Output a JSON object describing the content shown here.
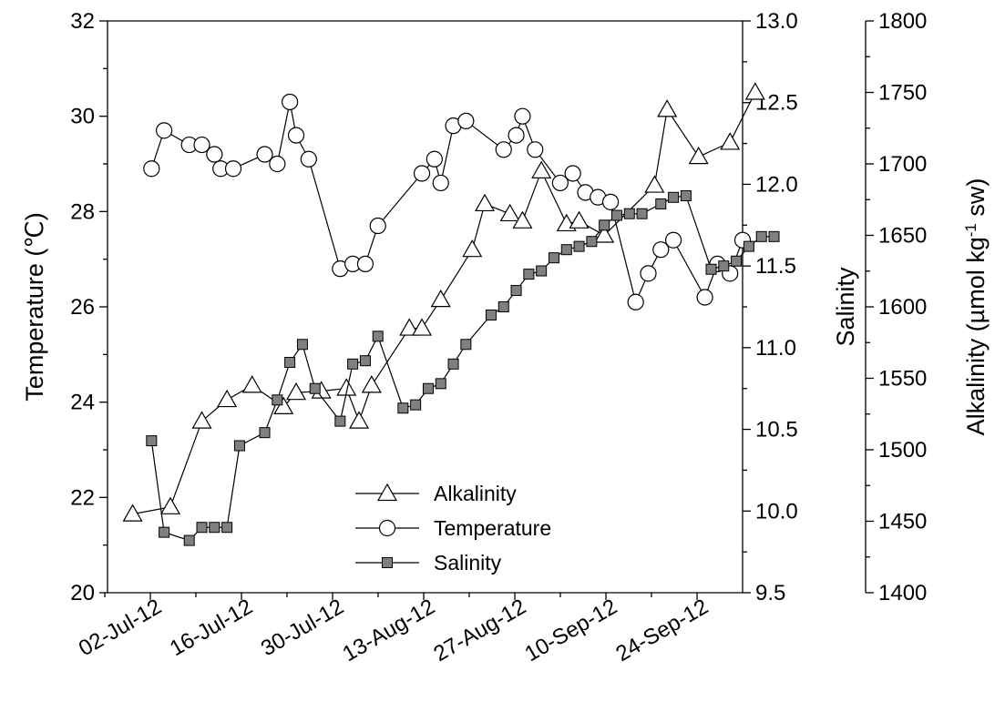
{
  "chart_data": {
    "type": "line",
    "x_tick_labels": [
      "02-Jul-12",
      "16-Jul-12",
      "30-Jul-12",
      "13-Aug-12",
      "27-Aug-12",
      "10-Sep-12",
      "24-Sep-12"
    ],
    "xlim": [
      "2012-06-27",
      "2012-10-06"
    ],
    "axes": {
      "temperature": {
        "label": "Temperature (℃)",
        "ylim": [
          20,
          32
        ],
        "ticks": [
          "20",
          "22",
          "24",
          "26",
          "28",
          "30",
          "32"
        ]
      },
      "salinity": {
        "label": "Salinity",
        "ylim": [
          9.5,
          13.0
        ],
        "ticks": [
          "9.5",
          "10.0",
          "10.5",
          "11.0",
          "11.5",
          "12.0",
          "12.5",
          "13.0"
        ]
      },
      "alkalinity": {
        "label_main": "Alkalinity (µmol kg",
        "label_sup": "-1",
        "label_tail": " sw)",
        "ylim": [
          1400,
          1800
        ],
        "ticks": [
          "1400",
          "1450",
          "1500",
          "1550",
          "1600",
          "1650",
          "1700",
          "1750",
          "1800"
        ]
      }
    },
    "legend": {
      "position": "bottom-center",
      "entries": [
        "Alkalinity",
        "Temperature",
        "Salinity"
      ]
    },
    "series": [
      {
        "name": "Alkalinity",
        "axis": "alkalinity",
        "marker": "triangle",
        "points": [
          [
            "2012-07-01",
            1455
          ],
          [
            "2012-07-07",
            1460
          ],
          [
            "2012-07-12",
            1520
          ],
          [
            "2012-07-16",
            1535
          ],
          [
            "2012-07-20",
            1545
          ],
          [
            "2012-07-25",
            1530
          ],
          [
            "2012-07-27",
            1540
          ],
          [
            "2012-07-31",
            1541
          ],
          [
            "2012-08-04",
            1543
          ],
          [
            "2012-08-06",
            1520
          ],
          [
            "2012-08-08",
            1545
          ],
          [
            "2012-08-14",
            1585
          ],
          [
            "2012-08-16",
            1585
          ],
          [
            "2012-08-19",
            1605
          ],
          [
            "2012-08-24",
            1640
          ],
          [
            "2012-08-26",
            1672
          ],
          [
            "2012-08-30",
            1665
          ],
          [
            "2012-09-01",
            1660
          ],
          [
            "2012-09-04",
            1695
          ],
          [
            "2012-09-08",
            1658
          ],
          [
            "2012-09-10",
            1660
          ],
          [
            "2012-09-14",
            1650
          ],
          [
            "2012-09-22",
            1685
          ],
          [
            "2012-09-24",
            1738
          ],
          [
            "2012-09-29",
            1705
          ],
          [
            "2012-10-04",
            1715
          ],
          [
            "2012-10-08",
            1750
          ]
        ]
      },
      {
        "name": "Temperature",
        "axis": "temperature",
        "marker": "circle",
        "points": [
          [
            "2012-07-04",
            28.9
          ],
          [
            "2012-07-06",
            29.7
          ],
          [
            "2012-07-10",
            29.4
          ],
          [
            "2012-07-12",
            29.4
          ],
          [
            "2012-07-14",
            29.2
          ],
          [
            "2012-07-15",
            28.9
          ],
          [
            "2012-07-17",
            28.9
          ],
          [
            "2012-07-22",
            29.2
          ],
          [
            "2012-07-24",
            29.0
          ],
          [
            "2012-07-26",
            30.3
          ],
          [
            "2012-07-27",
            29.6
          ],
          [
            "2012-07-29",
            29.1
          ],
          [
            "2012-08-03",
            26.8
          ],
          [
            "2012-08-05",
            26.9
          ],
          [
            "2012-08-07",
            26.9
          ],
          [
            "2012-08-09",
            27.7
          ],
          [
            "2012-08-16",
            28.8
          ],
          [
            "2012-08-18",
            29.1
          ],
          [
            "2012-08-19",
            28.6
          ],
          [
            "2012-08-21",
            29.8
          ],
          [
            "2012-08-23",
            29.9
          ],
          [
            "2012-08-29",
            29.3
          ],
          [
            "2012-08-31",
            29.6
          ],
          [
            "2012-09-01",
            30.0
          ],
          [
            "2012-09-03",
            29.3
          ],
          [
            "2012-09-07",
            28.6
          ],
          [
            "2012-09-09",
            28.8
          ],
          [
            "2012-09-11",
            28.4
          ],
          [
            "2012-09-13",
            28.3
          ],
          [
            "2012-09-15",
            28.2
          ],
          [
            "2012-09-19",
            26.1
          ],
          [
            "2012-09-21",
            26.7
          ],
          [
            "2012-09-23",
            27.2
          ],
          [
            "2012-09-25",
            27.4
          ],
          [
            "2012-09-30",
            26.2
          ],
          [
            "2012-10-02",
            26.9
          ],
          [
            "2012-10-04",
            26.7
          ],
          [
            "2012-10-06",
            27.4
          ]
        ]
      },
      {
        "name": "Salinity",
        "axis": "salinity",
        "marker": "square",
        "points": [
          [
            "2012-07-04",
            10.43
          ],
          [
            "2012-07-06",
            9.87
          ],
          [
            "2012-07-10",
            9.82
          ],
          [
            "2012-07-12",
            9.9
          ],
          [
            "2012-07-14",
            9.9
          ],
          [
            "2012-07-16",
            9.9
          ],
          [
            "2012-07-18",
            10.4
          ],
          [
            "2012-07-22",
            10.48
          ],
          [
            "2012-07-24",
            10.68
          ],
          [
            "2012-07-26",
            10.91
          ],
          [
            "2012-07-28",
            11.02
          ],
          [
            "2012-07-30",
            10.75
          ],
          [
            "2012-08-03",
            10.55
          ],
          [
            "2012-08-05",
            10.9
          ],
          [
            "2012-08-07",
            10.92
          ],
          [
            "2012-08-09",
            11.07
          ],
          [
            "2012-08-13",
            10.63
          ],
          [
            "2012-08-15",
            10.65
          ],
          [
            "2012-08-17",
            10.75
          ],
          [
            "2012-08-19",
            10.78
          ],
          [
            "2012-08-21",
            10.9
          ],
          [
            "2012-08-23",
            11.02
          ],
          [
            "2012-08-27",
            11.2
          ],
          [
            "2012-08-29",
            11.25
          ],
          [
            "2012-08-31",
            11.35
          ],
          [
            "2012-09-02",
            11.45
          ],
          [
            "2012-09-04",
            11.47
          ],
          [
            "2012-09-06",
            11.55
          ],
          [
            "2012-09-08",
            11.6
          ],
          [
            "2012-09-10",
            11.62
          ],
          [
            "2012-09-12",
            11.65
          ],
          [
            "2012-09-14",
            11.75
          ],
          [
            "2012-09-16",
            11.81
          ],
          [
            "2012-09-18",
            11.82
          ],
          [
            "2012-09-20",
            11.82
          ],
          [
            "2012-09-23",
            11.88
          ],
          [
            "2012-09-25",
            11.92
          ],
          [
            "2012-09-27",
            11.93
          ],
          [
            "2012-10-01",
            11.48
          ],
          [
            "2012-10-03",
            11.5
          ],
          [
            "2012-10-05",
            11.53
          ],
          [
            "2012-10-07",
            11.62
          ],
          [
            "2012-10-09",
            11.68
          ],
          [
            "2012-10-11",
            11.68
          ]
        ]
      }
    ]
  }
}
